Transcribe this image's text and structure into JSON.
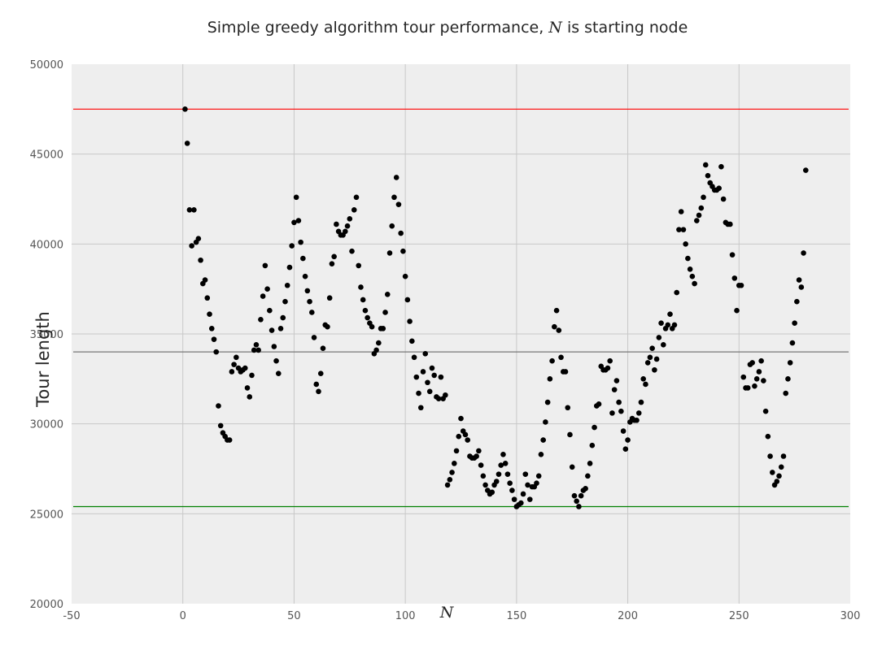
{
  "chart_data": {
    "type": "scatter",
    "title": {
      "prefix": "Simple greedy algorithm tour performance, ",
      "variable": "N",
      "suffix": " is starting node"
    },
    "xlabel": "N",
    "ylabel": "Tour length",
    "xlim": [
      -50,
      300
    ],
    "ylim": [
      20000,
      50000
    ],
    "xticks": [
      -50,
      0,
      50,
      100,
      150,
      200,
      250,
      300
    ],
    "yticks": [
      20000,
      25000,
      30000,
      35000,
      40000,
      45000,
      50000
    ],
    "grid": true,
    "background": "#eeeeee",
    "reference_lines": [
      {
        "y": 47500,
        "color": "#ff0000"
      },
      {
        "y": 34000,
        "color": "#777777"
      },
      {
        "y": 25400,
        "color": "#008000"
      }
    ],
    "series": [
      {
        "marker_color": "#000000",
        "x": [
          1,
          2,
          3,
          4,
          5,
          6,
          7,
          8,
          9,
          10,
          11,
          12,
          13,
          14,
          15,
          16,
          17,
          18,
          19,
          20,
          21,
          22,
          23,
          24,
          25,
          26,
          27,
          28,
          29,
          30,
          31,
          32,
          33,
          34,
          35,
          36,
          37,
          38,
          39,
          40,
          41,
          42,
          43,
          44,
          45,
          46,
          47,
          48,
          49,
          50,
          51,
          52,
          53,
          54,
          55,
          56,
          57,
          58,
          59,
          60,
          61,
          62,
          63,
          64,
          65,
          66,
          67,
          68,
          69,
          70,
          71,
          72,
          73,
          74,
          75,
          76,
          77,
          78,
          79,
          80,
          81,
          82,
          83,
          84,
          85,
          86,
          87,
          88,
          89,
          90,
          91,
          92,
          93,
          94,
          95,
          96,
          97,
          98,
          99,
          100,
          101,
          102,
          103,
          104,
          105,
          106,
          107,
          108,
          109,
          110,
          111,
          112,
          113,
          114,
          115,
          116,
          117,
          118,
          119,
          120,
          121,
          122,
          123,
          124,
          125,
          126,
          127,
          128,
          129,
          130,
          131,
          132,
          133,
          134,
          135,
          136,
          137,
          138,
          139,
          140,
          141,
          142,
          143,
          144,
          145,
          146,
          147,
          148,
          149,
          150,
          151,
          152,
          153,
          154,
          155,
          156,
          157,
          158,
          159,
          160,
          161,
          162,
          163,
          164,
          165,
          166,
          167,
          168,
          169,
          170,
          171,
          172,
          173,
          174,
          175,
          176,
          177,
          178,
          179,
          180,
          181,
          182,
          183,
          184,
          185,
          186,
          187,
          188,
          189,
          190,
          191,
          192,
          193,
          194,
          195,
          196,
          197,
          198,
          199,
          200,
          201,
          202,
          203,
          204,
          205,
          206,
          207,
          208,
          209,
          210,
          211,
          212,
          213,
          214,
          215,
          216,
          217,
          218,
          219,
          220,
          221,
          222,
          223,
          224,
          225,
          226,
          227,
          228,
          229,
          230,
          231,
          232,
          233,
          234,
          235,
          236,
          237,
          238,
          239,
          240,
          241,
          242,
          243,
          244,
          245,
          246,
          247,
          248,
          249,
          250,
          251,
          252,
          253,
          254,
          255,
          256,
          257,
          258,
          259,
          260,
          261,
          262,
          263,
          264,
          265,
          266,
          267,
          268,
          269,
          270,
          271,
          272,
          273,
          274,
          275,
          276,
          277,
          278,
          279,
          280
        ],
        "y": [
          47500,
          45600,
          41900,
          39900,
          41900,
          40100,
          40300,
          39100,
          37800,
          38000,
          37000,
          36100,
          35300,
          34700,
          34000,
          31000,
          29900,
          29500,
          29300,
          29100,
          29100,
          32900,
          33300,
          33700,
          33100,
          32900,
          33000,
          33100,
          32000,
          31500,
          32700,
          34100,
          34400,
          34100,
          35800,
          37100,
          38800,
          37500,
          36300,
          35200,
          34300,
          33500,
          32800,
          35300,
          35900,
          36800,
          37700,
          38700,
          39900,
          41200,
          42600,
          41300,
          40100,
          39200,
          38200,
          37400,
          36800,
          36200,
          34800,
          32200,
          31800,
          32800,
          34200,
          35500,
          35400,
          37000,
          38900,
          39300,
          41100,
          40700,
          40500,
          40500,
          40700,
          41000,
          41400,
          39600,
          41900,
          42600,
          38800,
          37600,
          36900,
          36300,
          35900,
          35600,
          35400,
          33900,
          34100,
          34500,
          35300,
          35300,
          36200,
          37200,
          39500,
          41000,
          42600,
          43700,
          42200,
          40600,
          39600,
          38200,
          36900,
          35700,
          34600,
          33700,
          32600,
          31700,
          30900,
          32900,
          33900,
          32300,
          31800,
          33100,
          32700,
          31500,
          31400,
          32600,
          31400,
          31600,
          26600,
          26900,
          27300,
          27800,
          28500,
          29300,
          30300,
          29600,
          29400,
          29100,
          28200,
          28100,
          28100,
          28200,
          28500,
          27700,
          27100,
          26600,
          26300,
          26100,
          26200,
          26600,
          26800,
          27200,
          27700,
          28300,
          27800,
          27200,
          26700,
          26300,
          25800,
          25400,
          25500,
          25600,
          26100,
          27200,
          26600,
          25800,
          26500,
          26500,
          26700,
          27100,
          28300,
          29100,
          30100,
          31200,
          32500,
          33500,
          35400,
          36300,
          35200,
          33700,
          32900,
          32900,
          30900,
          29400,
          27600,
          26000,
          25700,
          25400,
          26000,
          26300,
          26400,
          27100,
          27800,
          28800,
          29800,
          31000,
          31100,
          33200,
          33000,
          33000,
          33100,
          33500,
          30600,
          31900,
          32400,
          31200,
          30700,
          29600,
          28600,
          29100,
          30100,
          30300,
          30200,
          30200,
          30600,
          31200,
          32500,
          32200,
          33400,
          33700,
          34200,
          33000,
          33600,
          34800,
          35600,
          34400,
          35300,
          35500,
          36100,
          35300,
          35500,
          37300,
          40800,
          41800,
          40800,
          40000,
          39200,
          38600,
          38200,
          37800,
          41300,
          41600,
          42000,
          42600,
          44400,
          43800,
          43400,
          43200,
          43000,
          43000,
          43100,
          44300,
          42500,
          41200,
          41100,
          41100,
          39400,
          38100,
          36300,
          37700,
          37700,
          32600,
          32000,
          32000,
          33300,
          33400,
          32100,
          32500,
          32900,
          33500,
          32400,
          30700,
          29300,
          28200,
          27300,
          26600,
          26800,
          27100,
          27600,
          28200,
          31700,
          32500,
          33400,
          34500,
          35600,
          36800,
          38000,
          37600,
          39500,
          44100
        ]
      }
    ]
  }
}
